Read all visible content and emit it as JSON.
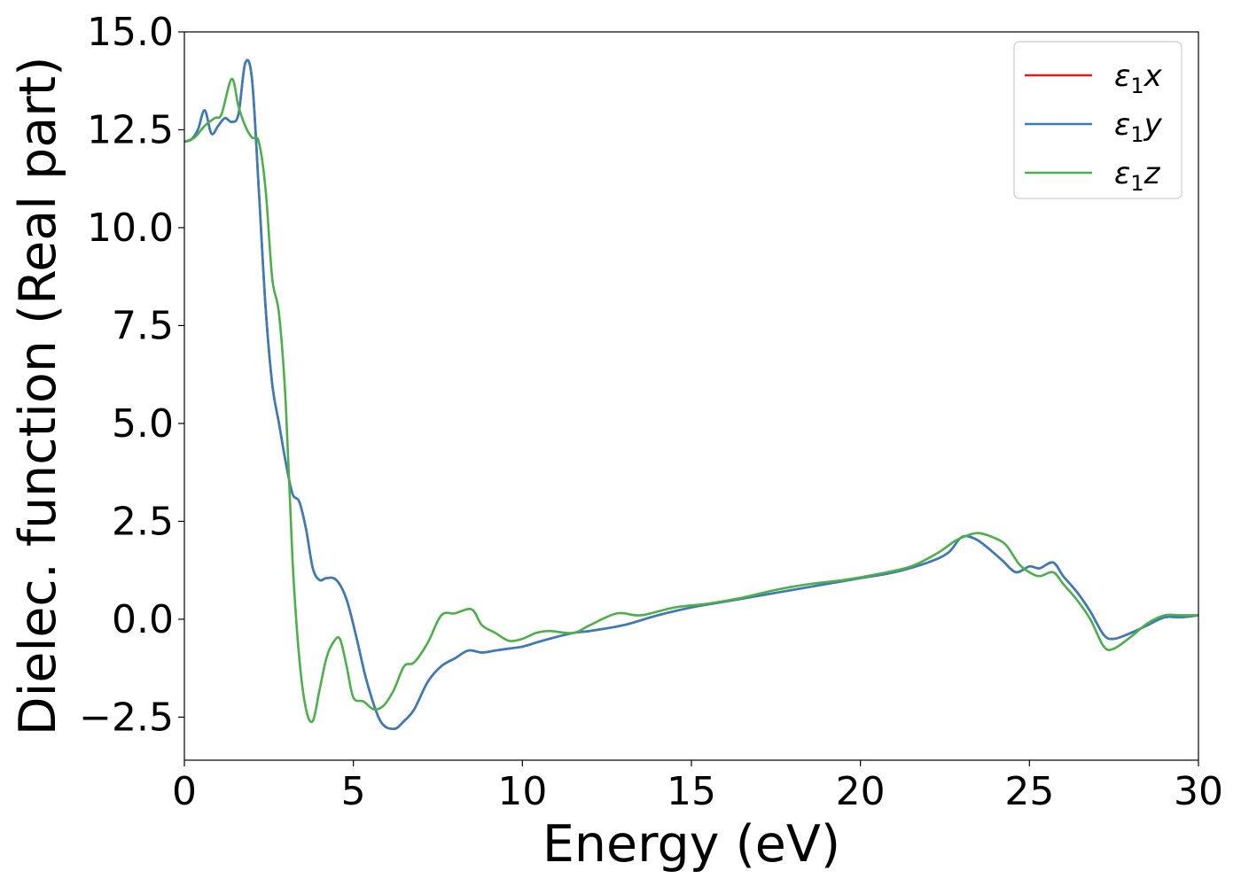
{
  "chart_data": {
    "type": "line",
    "title": "",
    "xlabel": "Energy (eV)",
    "ylabel": "Dielec. function (Real part)",
    "xlim": [
      0,
      30
    ],
    "ylim": [
      -3.6,
      15.0
    ],
    "xticks": [
      0,
      5,
      10,
      15,
      20,
      25,
      30
    ],
    "xtick_labels": [
      "0",
      "5",
      "10",
      "15",
      "20",
      "25",
      "30"
    ],
    "yticks": [
      -2.5,
      0.0,
      2.5,
      5.0,
      7.5,
      10.0,
      12.5,
      15.0
    ],
    "ytick_labels": [
      "−2.5",
      "0.0",
      "2.5",
      "5.0",
      "7.5",
      "10.0",
      "12.5",
      "15.0"
    ],
    "grid": false,
    "legend_position": "top-right",
    "series": [
      {
        "name": "ε1x",
        "name_main": "ε",
        "name_sub": "1",
        "name_tail": "x",
        "color": "#e41a1c",
        "x": [
          0,
          0.2,
          0.4,
          0.6,
          0.8,
          1.0,
          1.2,
          1.4,
          1.6,
          1.8,
          2.0,
          2.2,
          2.4,
          2.6,
          2.8,
          3.0,
          3.2,
          3.4,
          3.6,
          3.8,
          4.0,
          4.2,
          4.5,
          4.8,
          5.1,
          5.4,
          5.8,
          6.2,
          6.5,
          6.8,
          7.2,
          7.6,
          8.0,
          8.4,
          8.8,
          9.2,
          9.6,
          10.0,
          10.4,
          10.8,
          11.5,
          12.0,
          13.0,
          14.0,
          15.0,
          16.0,
          17.0,
          18.0,
          19.0,
          20.0,
          21.0,
          22.0,
          22.6,
          23.0,
          23.4,
          23.8,
          24.2,
          24.6,
          25.0,
          25.3,
          25.7,
          26.0,
          26.4,
          26.8,
          27.2,
          27.5,
          28.0,
          28.5,
          29.0,
          29.5,
          30.0
        ],
        "y": [
          12.2,
          12.25,
          12.5,
          13.0,
          12.4,
          12.6,
          12.8,
          12.7,
          12.9,
          14.2,
          13.8,
          11.0,
          8.0,
          6.0,
          5.0,
          4.0,
          3.2,
          3.0,
          2.3,
          1.3,
          1.0,
          1.05,
          1.0,
          0.5,
          -0.5,
          -1.6,
          -2.6,
          -2.8,
          -2.6,
          -2.3,
          -1.6,
          -1.2,
          -1.0,
          -0.8,
          -0.85,
          -0.8,
          -0.75,
          -0.7,
          -0.6,
          -0.5,
          -0.35,
          -0.3,
          -0.15,
          0.1,
          0.3,
          0.45,
          0.6,
          0.75,
          0.9,
          1.05,
          1.2,
          1.45,
          1.7,
          2.1,
          2.05,
          1.8,
          1.5,
          1.2,
          1.35,
          1.3,
          1.45,
          1.1,
          0.7,
          0.2,
          -0.4,
          -0.5,
          -0.35,
          -0.15,
          0.05,
          0.05,
          0.1
        ]
      },
      {
        "name": "ε1y",
        "name_main": "ε",
        "name_sub": "1",
        "name_tail": "y",
        "color": "#377eb8",
        "x": [
          0,
          0.2,
          0.4,
          0.6,
          0.8,
          1.0,
          1.2,
          1.4,
          1.6,
          1.8,
          2.0,
          2.2,
          2.4,
          2.6,
          2.8,
          3.0,
          3.2,
          3.4,
          3.6,
          3.8,
          4.0,
          4.2,
          4.5,
          4.8,
          5.1,
          5.4,
          5.8,
          6.2,
          6.5,
          6.8,
          7.2,
          7.6,
          8.0,
          8.4,
          8.8,
          9.2,
          9.6,
          10.0,
          10.4,
          10.8,
          11.5,
          12.0,
          13.0,
          14.0,
          15.0,
          16.0,
          17.0,
          18.0,
          19.0,
          20.0,
          21.0,
          22.0,
          22.6,
          23.0,
          23.4,
          23.8,
          24.2,
          24.6,
          25.0,
          25.3,
          25.7,
          26.0,
          26.4,
          26.8,
          27.2,
          27.5,
          28.0,
          28.5,
          29.0,
          29.5,
          30.0
        ],
        "y": [
          12.2,
          12.25,
          12.5,
          13.0,
          12.4,
          12.6,
          12.8,
          12.7,
          12.9,
          14.2,
          13.8,
          11.0,
          8.0,
          6.0,
          5.0,
          4.0,
          3.2,
          3.0,
          2.3,
          1.3,
          1.0,
          1.05,
          1.0,
          0.5,
          -0.5,
          -1.6,
          -2.6,
          -2.8,
          -2.6,
          -2.3,
          -1.6,
          -1.2,
          -1.0,
          -0.8,
          -0.85,
          -0.8,
          -0.75,
          -0.7,
          -0.6,
          -0.5,
          -0.35,
          -0.3,
          -0.15,
          0.1,
          0.3,
          0.45,
          0.6,
          0.75,
          0.9,
          1.05,
          1.2,
          1.45,
          1.7,
          2.1,
          2.05,
          1.8,
          1.5,
          1.2,
          1.35,
          1.3,
          1.45,
          1.1,
          0.7,
          0.2,
          -0.4,
          -0.5,
          -0.35,
          -0.15,
          0.05,
          0.05,
          0.1
        ]
      },
      {
        "name": "ε1z",
        "name_main": "ε",
        "name_sub": "1",
        "name_tail": "z",
        "color": "#4daf4a",
        "x": [
          0,
          0.3,
          0.6,
          0.9,
          1.1,
          1.4,
          1.6,
          1.8,
          2.0,
          2.2,
          2.4,
          2.6,
          2.8,
          3.0,
          3.2,
          3.4,
          3.6,
          3.8,
          4.0,
          4.2,
          4.4,
          4.6,
          4.8,
          5.0,
          5.3,
          5.6,
          5.9,
          6.2,
          6.5,
          6.8,
          7.2,
          7.6,
          8.0,
          8.5,
          8.8,
          9.2,
          9.6,
          10.0,
          10.4,
          10.8,
          11.5,
          12.0,
          12.8,
          13.5,
          14.5,
          15.5,
          16.5,
          17.5,
          18.5,
          19.5,
          20.5,
          21.5,
          22.3,
          22.8,
          23.2,
          23.5,
          23.9,
          24.3,
          24.7,
          25.0,
          25.3,
          25.7,
          26.0,
          26.4,
          26.8,
          27.2,
          27.5,
          28.0,
          28.5,
          29.0,
          29.5,
          30.0
        ],
        "y": [
          12.2,
          12.3,
          12.6,
          12.8,
          12.9,
          13.8,
          13.1,
          12.6,
          12.3,
          12.2,
          11.0,
          8.7,
          7.8,
          5.5,
          1.5,
          -1.0,
          -2.3,
          -2.6,
          -1.8,
          -1.0,
          -0.6,
          -0.5,
          -1.2,
          -2.0,
          -2.1,
          -2.3,
          -2.2,
          -1.8,
          -1.2,
          -1.1,
          -0.6,
          0.1,
          0.15,
          0.25,
          -0.15,
          -0.35,
          -0.55,
          -0.5,
          -0.35,
          -0.3,
          -0.35,
          -0.15,
          0.15,
          0.1,
          0.3,
          0.4,
          0.55,
          0.75,
          0.9,
          1.0,
          1.15,
          1.35,
          1.7,
          2.0,
          2.15,
          2.2,
          2.1,
          1.9,
          1.4,
          1.2,
          1.1,
          1.2,
          0.9,
          0.5,
          0.0,
          -0.7,
          -0.75,
          -0.45,
          -0.1,
          0.1,
          0.1,
          0.1
        ]
      }
    ]
  }
}
